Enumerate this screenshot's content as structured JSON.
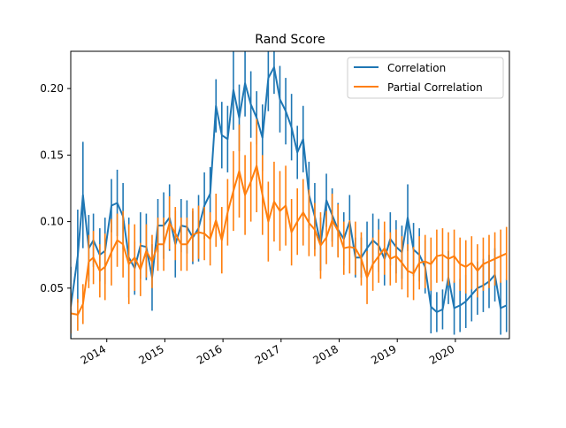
{
  "chart_data": {
    "type": "line",
    "title": "Rand Score",
    "xlabel": "",
    "ylabel": "",
    "x_tick_labels": [
      "2014",
      "2015",
      "2016",
      "2017",
      "2018",
      "2019",
      "2020"
    ],
    "x_ticks": [
      2014.0,
      2015.0,
      2016.0,
      2017.0,
      2018.0,
      2019.0,
      2020.0
    ],
    "xlim": [
      2013.38,
      2020.93
    ],
    "ylim": [
      0.012,
      0.228
    ],
    "y_ticks": [
      0.05,
      0.1,
      0.15,
      0.2
    ],
    "y_tick_labels": [
      "0.05",
      "0.10",
      "0.15",
      "0.20"
    ],
    "grid": false,
    "legend_position": "top-right",
    "colors": {
      "correlation": "#1f77b4",
      "partial": "#ff7f0e"
    },
    "x": [
      2013.38,
      2013.5,
      2013.59,
      2013.69,
      2013.77,
      2013.88,
      2013.97,
      2014.08,
      2014.18,
      2014.28,
      2014.38,
      2014.48,
      2014.58,
      2014.68,
      2014.78,
      2014.88,
      2014.98,
      2015.08,
      2015.18,
      2015.28,
      2015.38,
      2015.48,
      2015.58,
      2015.68,
      2015.78,
      2015.88,
      2015.98,
      2016.08,
      2016.18,
      2016.28,
      2016.38,
      2016.48,
      2016.58,
      2016.68,
      2016.78,
      2016.88,
      2016.98,
      2017.08,
      2017.18,
      2017.28,
      2017.38,
      2017.48,
      2017.58,
      2017.68,
      2017.78,
      2017.88,
      2017.98,
      2018.08,
      2018.18,
      2018.28,
      2018.38,
      2018.48,
      2018.58,
      2018.68,
      2018.78,
      2018.88,
      2018.98,
      2019.08,
      2019.18,
      2019.28,
      2019.38,
      2019.48,
      2019.58,
      2019.68,
      2019.78,
      2019.88,
      2019.98,
      2020.08,
      2020.18,
      2020.28,
      2020.38,
      2020.48,
      2020.58,
      2020.68,
      2020.78,
      2020.88
    ],
    "series": [
      {
        "name": "Correlation",
        "values": [
          0.036,
          0.074,
          0.12,
          0.08,
          0.086,
          0.075,
          0.078,
          0.112,
          0.114,
          0.104,
          0.073,
          0.065,
          0.082,
          0.081,
          0.058,
          0.097,
          0.097,
          0.103,
          0.083,
          0.097,
          0.096,
          0.088,
          0.095,
          0.112,
          0.121,
          0.187,
          0.165,
          0.162,
          0.199,
          0.178,
          0.204,
          0.188,
          0.178,
          0.163,
          0.208,
          0.216,
          0.192,
          0.183,
          0.171,
          0.152,
          0.162,
          0.12,
          0.104,
          0.083,
          0.116,
          0.105,
          0.094,
          0.087,
          0.1,
          0.073,
          0.073,
          0.08,
          0.086,
          0.082,
          0.072,
          0.087,
          0.081,
          0.077,
          0.103,
          0.079,
          0.075,
          0.066,
          0.036,
          0.032,
          0.034,
          0.058,
          0.035,
          0.037,
          0.04,
          0.045,
          0.05,
          0.052,
          0.055,
          0.06,
          0.035,
          0.037
        ],
        "err": [
          0.03,
          0.035,
          0.04,
          0.025,
          0.02,
          0.02,
          0.025,
          0.02,
          0.025,
          0.025,
          0.03,
          0.02,
          0.025,
          0.025,
          0.025,
          0.02,
          0.025,
          0.025,
          0.025,
          0.02,
          0.02,
          0.02,
          0.025,
          0.025,
          0.02,
          0.02,
          0.025,
          0.025,
          0.03,
          0.025,
          0.025,
          0.025,
          0.02,
          0.025,
          0.025,
          0.02,
          0.025,
          0.025,
          0.025,
          0.02,
          0.025,
          0.025,
          0.025,
          0.02,
          0.02,
          0.02,
          0.02,
          0.02,
          0.02,
          0.015,
          0.015,
          0.02,
          0.02,
          0.02,
          0.02,
          0.02,
          0.02,
          0.02,
          0.025,
          0.02,
          0.02,
          0.02,
          0.02,
          0.015,
          0.015,
          0.02,
          0.02,
          0.02,
          0.02,
          0.02,
          0.02,
          0.02,
          0.02,
          0.02,
          0.02,
          0.02
        ]
      },
      {
        "name": "Partial Correlation",
        "values": [
          0.031,
          0.03,
          0.038,
          0.07,
          0.073,
          0.063,
          0.066,
          0.077,
          0.086,
          0.083,
          0.068,
          0.073,
          0.064,
          0.078,
          0.07,
          0.083,
          0.083,
          0.099,
          0.091,
          0.083,
          0.083,
          0.09,
          0.092,
          0.091,
          0.087,
          0.101,
          0.086,
          0.107,
          0.123,
          0.138,
          0.12,
          0.13,
          0.142,
          0.12,
          0.1,
          0.115,
          0.108,
          0.112,
          0.092,
          0.1,
          0.107,
          0.099,
          0.094,
          0.082,
          0.088,
          0.101,
          0.093,
          0.08,
          0.081,
          0.08,
          0.072,
          0.058,
          0.068,
          0.074,
          0.08,
          0.072,
          0.074,
          0.069,
          0.063,
          0.061,
          0.069,
          0.07,
          0.068,
          0.074,
          0.075,
          0.072,
          0.074,
          0.068,
          0.066,
          0.069,
          0.063,
          0.068,
          0.07,
          0.072,
          0.074,
          0.076
        ],
        "err": [
          0.015,
          0.012,
          0.015,
          0.02,
          0.02,
          0.02,
          0.025,
          0.025,
          0.02,
          0.025,
          0.03,
          0.025,
          0.02,
          0.02,
          0.02,
          0.02,
          0.02,
          0.02,
          0.02,
          0.02,
          0.02,
          0.02,
          0.02,
          0.02,
          0.02,
          0.02,
          0.025,
          0.025,
          0.03,
          0.035,
          0.03,
          0.03,
          0.035,
          0.03,
          0.03,
          0.03,
          0.03,
          0.03,
          0.025,
          0.025,
          0.025,
          0.025,
          0.02,
          0.025,
          0.02,
          0.02,
          0.02,
          0.02,
          0.02,
          0.02,
          0.02,
          0.02,
          0.02,
          0.02,
          0.02,
          0.02,
          0.02,
          0.02,
          0.02,
          0.02,
          0.02,
          0.02,
          0.02,
          0.02,
          0.02,
          0.02,
          0.02,
          0.02,
          0.02,
          0.02,
          0.02,
          0.02,
          0.02,
          0.02,
          0.02,
          0.02
        ]
      }
    ]
  }
}
